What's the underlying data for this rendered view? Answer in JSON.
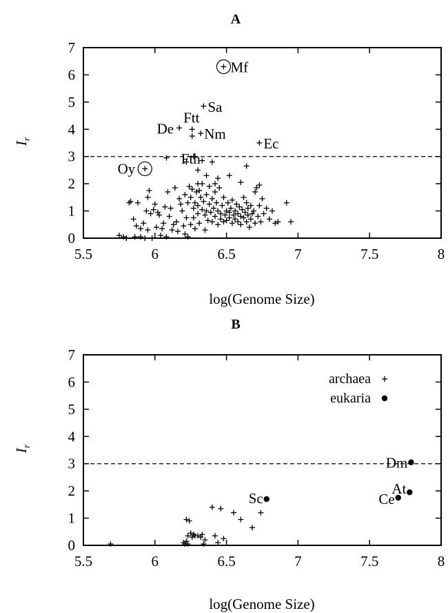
{
  "chart_data": [
    {
      "type": "scatter",
      "title": "A",
      "xlabel": "log(Genome Size)",
      "ylabel": "I_r",
      "xlim": [
        5.5,
        8
      ],
      "ylim": [
        0,
        7
      ],
      "xticks": [
        5.5,
        6,
        6.5,
        7,
        7.5,
        8
      ],
      "yticks": [
        0,
        1,
        2,
        3,
        4,
        5,
        6,
        7
      ],
      "xtick_labels": [
        "5.5",
        "6",
        "6.5",
        "7",
        "7.5",
        "8"
      ],
      "ytick_labels": [
        "0",
        "1",
        "2",
        "3",
        "4",
        "5",
        "6",
        "7"
      ],
      "threshold": 3,
      "grid": false,
      "series": [
        {
          "marker": "plus",
          "points": [
            [
              5.75,
              0.1
            ],
            [
              5.78,
              0.05
            ],
            [
              5.8,
              0.0
            ],
            [
              5.82,
              1.3
            ],
            [
              5.83,
              1.35
            ],
            [
              5.85,
              0.7
            ],
            [
              5.86,
              0.05
            ],
            [
              5.87,
              0.45
            ],
            [
              5.88,
              1.3
            ],
            [
              5.9,
              0.35
            ],
            [
              5.9,
              0.05
            ],
            [
              5.92,
              0.55
            ],
            [
              5.93,
              0.0
            ],
            [
              5.94,
              1.0
            ],
            [
              5.95,
              1.5
            ],
            [
              5.95,
              0.3
            ],
            [
              5.96,
              1.75
            ],
            [
              5.97,
              0.9
            ],
            [
              5.98,
              0.0
            ],
            [
              5.99,
              1.05
            ],
            [
              6.0,
              1.25
            ],
            [
              6.01,
              0.4
            ],
            [
              6.02,
              0.95
            ],
            [
              6.03,
              0.85
            ],
            [
              6.04,
              0.1
            ],
            [
              6.05,
              0.35
            ],
            [
              6.06,
              0.55
            ],
            [
              6.07,
              1.15
            ],
            [
              6.08,
              0.05
            ],
            [
              6.09,
              1.7
            ],
            [
              6.1,
              0.8
            ],
            [
              6.11,
              1.1
            ],
            [
              6.12,
              0.3
            ],
            [
              6.13,
              0.5
            ],
            [
              6.14,
              1.85
            ],
            [
              6.15,
              0.6
            ],
            [
              6.16,
              0.25
            ],
            [
              6.17,
              1.45
            ],
            [
              6.18,
              1.25
            ],
            [
              6.19,
              1.0
            ],
            [
              6.2,
              0.45
            ],
            [
              6.21,
              1.6
            ],
            [
              6.21,
              0.15
            ],
            [
              6.22,
              0.75
            ],
            [
              6.23,
              1.3
            ],
            [
              6.23,
              0.05
            ],
            [
              6.24,
              1.9
            ],
            [
              6.25,
              1.5
            ],
            [
              6.25,
              0.5
            ],
            [
              6.26,
              1.8
            ],
            [
              6.27,
              1.1
            ],
            [
              6.27,
              0.75
            ],
            [
              6.28,
              1.3
            ],
            [
              6.28,
              0.35
            ],
            [
              6.29,
              1.7
            ],
            [
              6.3,
              1.2
            ],
            [
              6.3,
              0.9
            ],
            [
              6.31,
              1.75
            ],
            [
              6.31,
              0.55
            ],
            [
              6.32,
              1.5
            ],
            [
              6.33,
              2.0
            ],
            [
              6.33,
              1.05
            ],
            [
              6.34,
              1.35
            ],
            [
              6.35,
              0.85
            ],
            [
              6.35,
              0.3
            ],
            [
              6.36,
              1.6
            ],
            [
              6.36,
              1.0
            ],
            [
              6.37,
              0.65
            ],
            [
              6.38,
              1.25
            ],
            [
              6.38,
              1.9
            ],
            [
              6.39,
              0.95
            ],
            [
              6.4,
              1.45
            ],
            [
              6.4,
              0.6
            ],
            [
              6.41,
              1.1
            ],
            [
              6.42,
              1.7
            ],
            [
              6.42,
              0.8
            ],
            [
              6.43,
              1.3
            ],
            [
              6.44,
              0.5
            ],
            [
              6.44,
              1.0
            ],
            [
              6.45,
              1.85
            ],
            [
              6.46,
              0.9
            ],
            [
              6.46,
              0.7
            ],
            [
              6.47,
              1.2
            ],
            [
              6.48,
              0.6
            ],
            [
              6.48,
              1.5
            ],
            [
              6.49,
              0.85
            ],
            [
              6.5,
              1.0
            ],
            [
              6.5,
              0.65
            ],
            [
              6.51,
              1.3
            ],
            [
              6.52,
              0.75
            ],
            [
              6.52,
              0.95
            ],
            [
              6.53,
              1.1
            ],
            [
              6.54,
              0.55
            ],
            [
              6.54,
              1.4
            ],
            [
              6.55,
              0.85
            ],
            [
              6.56,
              0.7
            ],
            [
              6.56,
              1.0
            ],
            [
              6.57,
              1.25
            ],
            [
              6.58,
              0.6
            ],
            [
              6.58,
              0.9
            ],
            [
              6.59,
              1.15
            ],
            [
              6.6,
              0.8
            ],
            [
              6.6,
              0.5
            ],
            [
              6.61,
              1.05
            ],
            [
              6.62,
              1.5
            ],
            [
              6.62,
              0.75
            ],
            [
              6.63,
              0.95
            ],
            [
              6.64,
              1.3
            ],
            [
              6.64,
              0.6
            ],
            [
              6.65,
              1.1
            ],
            [
              6.65,
              0.85
            ],
            [
              6.66,
              0.4
            ],
            [
              6.67,
              1.2
            ],
            [
              6.67,
              0.7
            ],
            [
              6.68,
              0.9
            ],
            [
              6.69,
              1.0
            ],
            [
              6.7,
              1.7
            ],
            [
              6.7,
              0.55
            ],
            [
              6.71,
              1.85
            ],
            [
              6.72,
              0.8
            ],
            [
              6.73,
              1.95
            ],
            [
              6.73,
              1.2
            ],
            [
              6.74,
              0.6
            ],
            [
              6.75,
              1.45
            ],
            [
              6.76,
              0.9
            ],
            [
              6.78,
              1.1
            ],
            [
              6.8,
              0.7
            ],
            [
              6.82,
              1.0
            ],
            [
              6.84,
              0.55
            ],
            [
              6.86,
              0.6
            ],
            [
              6.92,
              1.3
            ],
            [
              6.95,
              0.6
            ],
            [
              6.08,
              2.95
            ],
            [
              6.22,
              2.8
            ],
            [
              6.3,
              2.5
            ],
            [
              6.33,
              2.85
            ],
            [
              6.4,
              2.8
            ],
            [
              6.36,
              2.3
            ],
            [
              6.44,
              2.2
            ],
            [
              6.64,
              2.65
            ],
            [
              6.52,
              2.3
            ],
            [
              6.6,
              2.05
            ],
            [
              6.27,
              3.0
            ],
            [
              6.3,
              2.0
            ],
            [
              6.42,
              2.0
            ]
          ]
        }
      ],
      "labeled_points": [
        {
          "label": "Mf",
          "x": 6.48,
          "y": 6.3,
          "circled": true
        },
        {
          "label": "Sa",
          "x": 6.34,
          "y": 4.85,
          "circled": false
        },
        {
          "label": "Ftt",
          "x": 6.26,
          "y": 4.0,
          "circled": false
        },
        {
          "label": "De",
          "x": 6.17,
          "y": 4.05,
          "circled": false
        },
        {
          "label": "Nm",
          "x": 6.32,
          "y": 3.85,
          "circled": false
        },
        {
          "label": "Ec",
          "x": 6.73,
          "y": 3.5,
          "circled": false
        },
        {
          "label": "Fth",
          "x": 6.26,
          "y": 3.75,
          "circled": false
        },
        {
          "label": "Oy",
          "x": 5.93,
          "y": 2.55,
          "circled": true
        }
      ]
    },
    {
      "type": "scatter",
      "title": "B",
      "xlabel": "log(Genome Size)",
      "ylabel": "I_r",
      "xlim": [
        5.5,
        8
      ],
      "ylim": [
        0,
        7
      ],
      "xticks": [
        5.5,
        6,
        6.5,
        7,
        7.5,
        8
      ],
      "yticks": [
        0,
        1,
        2,
        3,
        4,
        5,
        6,
        7
      ],
      "xtick_labels": [
        "5.5",
        "6",
        "6.5",
        "7",
        "7.5",
        "8"
      ],
      "ytick_labels": [
        "0",
        "1",
        "2",
        "3",
        "4",
        "5",
        "6",
        "7"
      ],
      "threshold": 3,
      "grid": false,
      "legend_position": "top-right",
      "series": [
        {
          "name": "archaea",
          "marker": "plus",
          "points": [
            [
              5.69,
              0.05
            ],
            [
              6.2,
              0.1
            ],
            [
              6.21,
              0.05
            ],
            [
              6.22,
              0.15
            ],
            [
              6.22,
              0.95
            ],
            [
              6.23,
              0.35
            ],
            [
              6.23,
              0.05
            ],
            [
              6.24,
              0.9
            ],
            [
              6.25,
              0.45
            ],
            [
              6.26,
              0.3
            ],
            [
              6.27,
              0.4
            ],
            [
              6.28,
              0.35
            ],
            [
              6.3,
              0.35
            ],
            [
              6.32,
              0.3
            ],
            [
              6.33,
              0.4
            ],
            [
              6.34,
              0.05
            ],
            [
              6.35,
              0.2
            ],
            [
              6.4,
              1.4
            ],
            [
              6.42,
              0.35
            ],
            [
              6.44,
              0.1
            ],
            [
              6.46,
              1.35
            ],
            [
              6.48,
              0.25
            ],
            [
              6.55,
              1.2
            ],
            [
              6.6,
              0.95
            ],
            [
              6.68,
              0.65
            ],
            [
              6.74,
              1.2
            ]
          ]
        },
        {
          "name": "eukaria",
          "marker": "dot",
          "points": [
            [
              6.78,
              1.7
            ],
            [
              7.7,
              1.75
            ],
            [
              7.78,
              1.95
            ],
            [
              7.79,
              3.05
            ]
          ]
        }
      ],
      "labeled_points": [
        {
          "label": "Sc",
          "x": 6.78,
          "y": 1.7
        },
        {
          "label": "Dm",
          "x": 7.79,
          "y": 3.05
        },
        {
          "label": "At",
          "x": 7.78,
          "y": 1.95
        },
        {
          "label": "Ce",
          "x": 7.7,
          "y": 1.75
        }
      ]
    }
  ]
}
